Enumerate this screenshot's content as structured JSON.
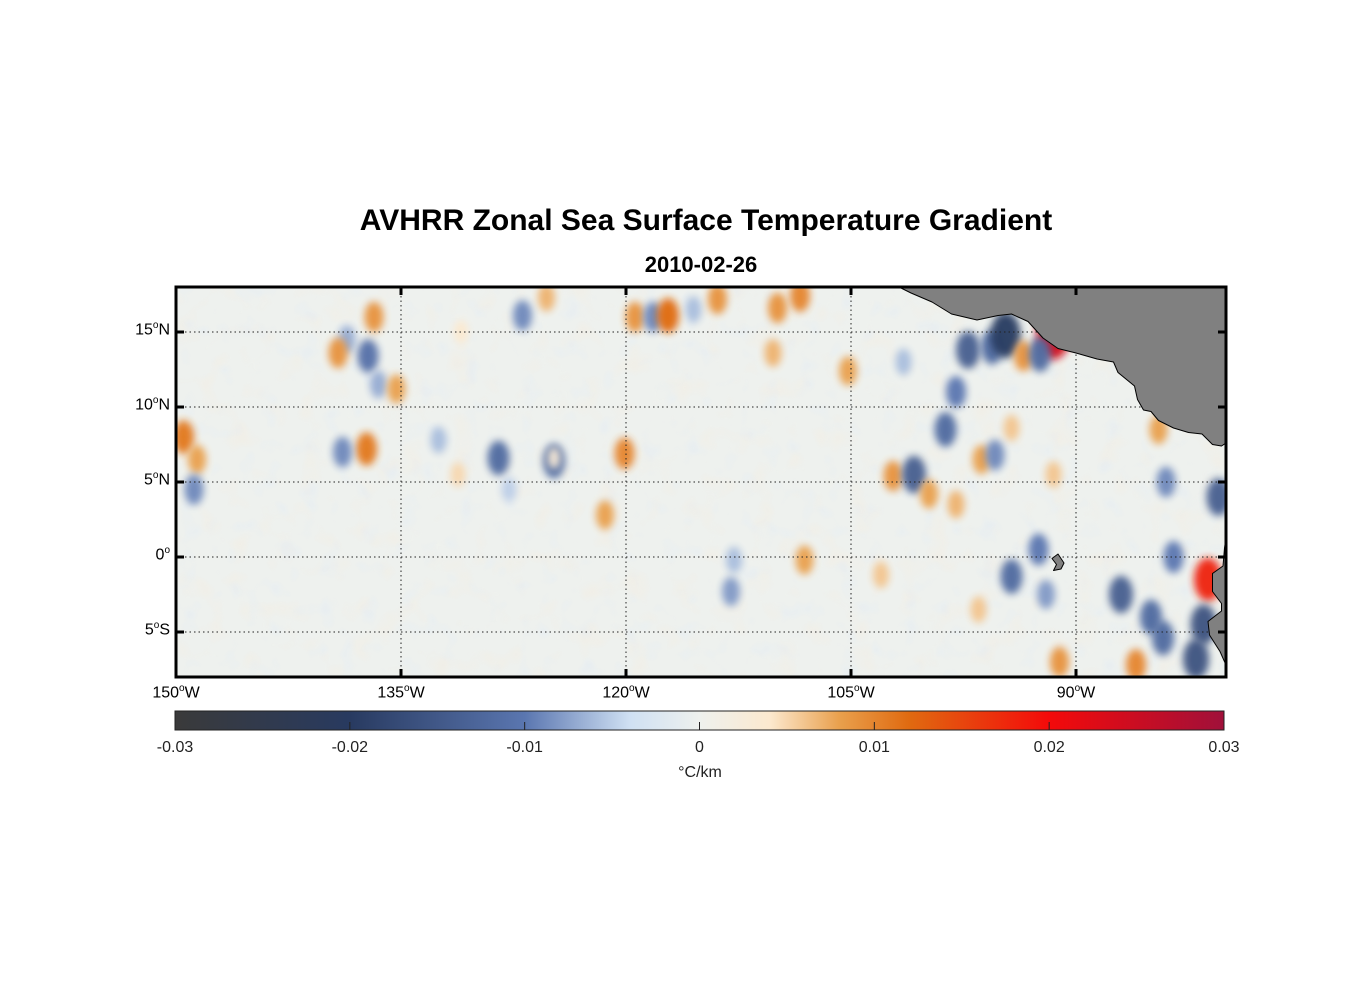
{
  "title": "AVHRR Zonal Sea Surface Temperature Gradient",
  "subtitle": "2010-02-26",
  "map": {
    "projection": "equirectangular",
    "lon_range": [
      -150,
      -80
    ],
    "lat_range": [
      -8,
      18
    ],
    "land_color": "#808080",
    "lat_ticks": [
      {
        "value": 15,
        "deg": "15",
        "hemi": "N"
      },
      {
        "value": 10,
        "deg": "10",
        "hemi": "N"
      },
      {
        "value": 5,
        "deg": "5",
        "hemi": "N"
      },
      {
        "value": 0,
        "deg": "0",
        "hemi": ""
      },
      {
        "value": -5,
        "deg": "5",
        "hemi": "S"
      }
    ],
    "lon_ticks": [
      {
        "value": -150,
        "deg": "150",
        "hemi": "W"
      },
      {
        "value": -135,
        "deg": "135",
        "hemi": "W"
      },
      {
        "value": -120,
        "deg": "120",
        "hemi": "W"
      },
      {
        "value": -105,
        "deg": "105",
        "hemi": "W"
      },
      {
        "value": -90,
        "deg": "90",
        "hemi": "W"
      }
    ],
    "anomalies": [
      {
        "lon": -149.5,
        "lat": 8,
        "v": 0.011
      },
      {
        "lon": -148.6,
        "lat": 6.5,
        "v": 0.008
      },
      {
        "lon": -148.8,
        "lat": 4.5,
        "v": -0.009
      },
      {
        "lon": -136.8,
        "lat": 16,
        "v": 0.009
      },
      {
        "lon": -138.6,
        "lat": 14.5,
        "v": -0.007
      },
      {
        "lon": -139.2,
        "lat": 13.6,
        "v": 0.009
      },
      {
        "lon": -137.2,
        "lat": 13.4,
        "v": -0.011
      },
      {
        "lon": -136.5,
        "lat": 11.5,
        "v": -0.007
      },
      {
        "lon": -135.3,
        "lat": 11.2,
        "v": 0.008
      },
      {
        "lon": -137.3,
        "lat": 7.2,
        "v": 0.011
      },
      {
        "lon": -138.9,
        "lat": 7,
        "v": -0.009
      },
      {
        "lon": -132.5,
        "lat": 7.8,
        "v": -0.006
      },
      {
        "lon": -128.5,
        "lat": 6.6,
        "v": -0.012
      },
      {
        "lon": -124.8,
        "lat": 6.4,
        "v": -0.012
      },
      {
        "lon": -121.4,
        "lat": 2.8,
        "v": 0.008
      },
      {
        "lon": -124.8,
        "lat": 6.6,
        "v": 0.003
      },
      {
        "lon": -120.1,
        "lat": 6.9,
        "v": 0.01
      },
      {
        "lon": -119.4,
        "lat": 16,
        "v": 0.009
      },
      {
        "lon": -118.2,
        "lat": 16,
        "v": -0.009
      },
      {
        "lon": -117.2,
        "lat": 16.1,
        "v": 0.012
      },
      {
        "lon": -115.5,
        "lat": 16.5,
        "v": -0.006
      },
      {
        "lon": -113.9,
        "lat": 17.2,
        "v": 0.009
      },
      {
        "lon": -109.9,
        "lat": 16.6,
        "v": 0.009
      },
      {
        "lon": -108.4,
        "lat": 17.4,
        "v": 0.01
      },
      {
        "lon": -110.2,
        "lat": 13.6,
        "v": 0.007
      },
      {
        "lon": -125.3,
        "lat": 17.3,
        "v": 0.007
      },
      {
        "lon": -126.9,
        "lat": 16.1,
        "v": -0.009
      },
      {
        "lon": -131,
        "lat": 15,
        "v": 0.004
      },
      {
        "lon": -105.2,
        "lat": 12.4,
        "v": 0.008
      },
      {
        "lon": -108.1,
        "lat": -0.2,
        "v": 0.008
      },
      {
        "lon": -102.2,
        "lat": 5.4,
        "v": 0.009
      },
      {
        "lon": -100.8,
        "lat": 5.5,
        "v": -0.014
      },
      {
        "lon": -99.8,
        "lat": 4.2,
        "v": 0.008
      },
      {
        "lon": -98,
        "lat": 3.5,
        "v": 0.007
      },
      {
        "lon": -96.3,
        "lat": 6.5,
        "v": 0.008
      },
      {
        "lon": -95.4,
        "lat": 6.8,
        "v": -0.009
      },
      {
        "lon": -98.7,
        "lat": 8.5,
        "v": -0.012
      },
      {
        "lon": -98,
        "lat": 11,
        "v": -0.01
      },
      {
        "lon": -97.2,
        "lat": 13.8,
        "v": -0.014
      },
      {
        "lon": -95.6,
        "lat": 14,
        "v": -0.012
      },
      {
        "lon": -94.7,
        "lat": 14.8,
        "v": -0.02
      },
      {
        "lon": -93.5,
        "lat": 13.4,
        "v": 0.009
      },
      {
        "lon": -91.5,
        "lat": 14.9,
        "v": 0.024
      },
      {
        "lon": -92.4,
        "lat": 13.5,
        "v": -0.012
      },
      {
        "lon": -94.3,
        "lat": 8.6,
        "v": 0.006
      },
      {
        "lon": -91.5,
        "lat": 5.5,
        "v": 0.006
      },
      {
        "lon": -94.3,
        "lat": -1.3,
        "v": -0.012
      },
      {
        "lon": -92.5,
        "lat": 0.5,
        "v": -0.01
      },
      {
        "lon": -92,
        "lat": -2.5,
        "v": -0.008
      },
      {
        "lon": -87,
        "lat": -2.5,
        "v": -0.014
      },
      {
        "lon": -84,
        "lat": 5,
        "v": -0.009
      },
      {
        "lon": -83.5,
        "lat": 0,
        "v": -0.01
      },
      {
        "lon": -81.2,
        "lat": -1.5,
        "v": 0.018
      },
      {
        "lon": -81.5,
        "lat": -4.5,
        "v": -0.016
      },
      {
        "lon": -80.5,
        "lat": 4,
        "v": -0.014
      },
      {
        "lon": -84.5,
        "lat": 8.5,
        "v": 0.008
      },
      {
        "lon": -85,
        "lat": -4,
        "v": -0.012
      },
      {
        "lon": -82,
        "lat": -6.8,
        "v": -0.016
      },
      {
        "lon": -84.2,
        "lat": -5.4,
        "v": -0.012
      },
      {
        "lon": -86,
        "lat": -7.2,
        "v": 0.01
      },
      {
        "lon": -91.1,
        "lat": -7,
        "v": 0.009
      },
      {
        "lon": -112.8,
        "lat": -0.2,
        "v": -0.006
      },
      {
        "lon": -113,
        "lat": -2.3,
        "v": -0.008
      },
      {
        "lon": -103,
        "lat": -1.2,
        "v": 0.006
      },
      {
        "lon": -131.2,
        "lat": 5.5,
        "v": 0.005
      },
      {
        "lon": -127.8,
        "lat": 4.5,
        "v": -0.005
      },
      {
        "lon": -101.5,
        "lat": 13,
        "v": -0.006
      },
      {
        "lon": -96.5,
        "lat": -3.5,
        "v": 0.006
      }
    ],
    "land": [
      {
        "name": "central-america",
        "outline": [
          [
            -101.8,
            18
          ],
          [
            -101,
            17.6
          ],
          [
            -99.6,
            17
          ],
          [
            -98.3,
            16.2
          ],
          [
            -96.6,
            15.8
          ],
          [
            -95.2,
            16.1
          ],
          [
            -94.3,
            16.2
          ],
          [
            -93.2,
            15.7
          ],
          [
            -92.2,
            14.6
          ],
          [
            -91.2,
            13.9
          ],
          [
            -90,
            13.6
          ],
          [
            -88.6,
            13.2
          ],
          [
            -87.5,
            13.0
          ],
          [
            -87.2,
            12.3
          ],
          [
            -86.1,
            11.4
          ],
          [
            -85.9,
            10.5
          ],
          [
            -85.5,
            9.8
          ],
          [
            -85.0,
            9.7
          ],
          [
            -84.5,
            9.1
          ],
          [
            -83.5,
            8.6
          ],
          [
            -82.5,
            8.3
          ],
          [
            -81.6,
            8.2
          ],
          [
            -80.9,
            7.5
          ],
          [
            -80.3,
            7.4
          ],
          [
            -80,
            7.6
          ],
          [
            -80,
            18
          ]
        ]
      },
      {
        "name": "south-america-coast",
        "outline": [
          [
            -80,
            1.3
          ],
          [
            -80.1,
            0.6
          ],
          [
            -80.2,
            -0.6
          ],
          [
            -80.9,
            -1.1
          ],
          [
            -80.9,
            -2.3
          ],
          [
            -80.3,
            -3.1
          ],
          [
            -80.3,
            -3.6
          ],
          [
            -81.2,
            -4.3
          ],
          [
            -81.1,
            -5.2
          ],
          [
            -80.4,
            -6.3
          ],
          [
            -80,
            -7.2
          ],
          [
            -80,
            1.3
          ]
        ]
      },
      {
        "name": "galapagos",
        "outline": [
          [
            -91.6,
            -0.1
          ],
          [
            -91.2,
            0.2
          ],
          [
            -90.8,
            -0.4
          ],
          [
            -91.0,
            -0.8
          ],
          [
            -91.5,
            -0.9
          ],
          [
            -91.3,
            -0.5
          ],
          [
            -91.6,
            -0.1
          ]
        ]
      }
    ]
  },
  "colorbar": {
    "min": -0.03,
    "max": 0.03,
    "unit_symbol": "°",
    "unit_rest": "C/km",
    "tick_values": [
      -0.03,
      -0.02,
      -0.01,
      0,
      0.01,
      0.02,
      0.03
    ],
    "tick_labels": [
      "-0.03",
      "-0.02",
      "-0.01",
      "0",
      "0.01",
      "0.02",
      "0.03"
    ],
    "stops": [
      {
        "v": -0.03,
        "color": "#3a3a3a"
      },
      {
        "v": -0.02,
        "color": "#283a60"
      },
      {
        "v": -0.01,
        "color": "#5a76b0"
      },
      {
        "v": -0.004,
        "color": "#cfe0f3"
      },
      {
        "v": 0,
        "color": "#eef1ee"
      },
      {
        "v": 0.004,
        "color": "#fce9cf"
      },
      {
        "v": 0.008,
        "color": "#e9a04d"
      },
      {
        "v": 0.012,
        "color": "#e06a10"
      },
      {
        "v": 0.02,
        "color": "#f40a0a"
      },
      {
        "v": 0.03,
        "color": "#a0103a"
      }
    ]
  }
}
